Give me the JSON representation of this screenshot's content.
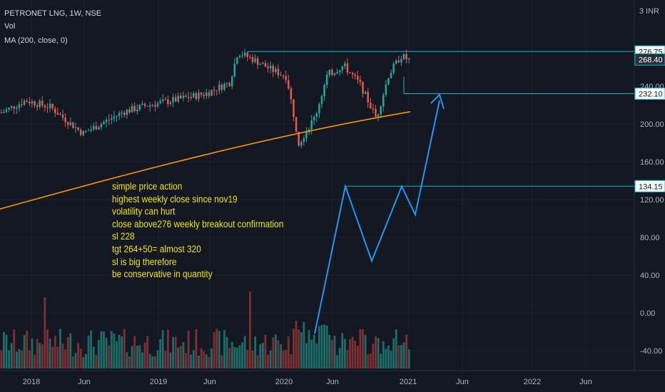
{
  "header": {
    "symbol": "PETRONET LNG, 1W, NSE",
    "indicator_vol": "Vol",
    "indicator_ma": "MA (200, close, 0)",
    "currency": "3 INR"
  },
  "annotation_lines": [
    "simple price action",
    "highest weekly close since nov19",
    "volatility can hurt",
    "close above276 weekly breakout confirmation",
    "sl 228",
    "tgt 264+50= almost 320",
    "sl is big therefore",
    "be conservative in quantity"
  ],
  "chart_data": {
    "type": "candlestick",
    "title": "PETRONET LNG, 1W, NSE",
    "x_tick_labels": [
      "2018",
      "Jun",
      "2019",
      "Jun",
      "2020",
      "Jun",
      "2021",
      "Jun",
      "2022",
      "Jun"
    ],
    "y_tick_labels": [
      "200.00",
      "160.00",
      "120.00",
      "80.00",
      "40.00",
      "0.00",
      "-40.00"
    ],
    "y_range": [
      -65,
      300
    ],
    "price_path": [
      {
        "t": 0,
        "p": 212
      },
      {
        "t": 0.06,
        "p": 225
      },
      {
        "t": 0.12,
        "p": 218
      },
      {
        "t": 0.2,
        "p": 190
      },
      {
        "t": 0.3,
        "p": 213
      },
      {
        "t": 0.36,
        "p": 220
      },
      {
        "t": 0.42,
        "p": 225
      },
      {
        "t": 0.5,
        "p": 232
      },
      {
        "t": 0.56,
        "p": 244
      },
      {
        "t": 0.58,
        "p": 276
      },
      {
        "t": 0.62,
        "p": 268
      },
      {
        "t": 0.66,
        "p": 258
      },
      {
        "t": 0.7,
        "p": 250
      },
      {
        "t": 0.73,
        "p": 180
      },
      {
        "t": 0.77,
        "p": 208
      },
      {
        "t": 0.8,
        "p": 252
      },
      {
        "t": 0.84,
        "p": 262
      },
      {
        "t": 0.88,
        "p": 242
      },
      {
        "t": 0.92,
        "p": 206
      },
      {
        "t": 0.95,
        "p": 252
      },
      {
        "t": 0.98,
        "p": 272
      },
      {
        "t": 1,
        "p": 268
      }
    ],
    "moving_average": {
      "name": "MA (200, close, 0)",
      "color": "#ff9800",
      "points": [
        {
          "x_label": "start",
          "y": 110
        },
        {
          "x_label": "2021",
          "y": 213
        }
      ]
    },
    "horizontal_levels": [
      {
        "value": 276.75,
        "label": "276.75"
      },
      {
        "value": 232.1,
        "label": "232.10"
      },
      {
        "value": 134.15,
        "label": "134.15"
      }
    ],
    "last_price": {
      "value": 268.4,
      "label": "268.40"
    },
    "hidden_tick": "240.00",
    "projected_path": [
      {
        "date_label": "Mar 2020",
        "y": -22
      },
      {
        "date_label": "Jul 2020",
        "y": 134
      },
      {
        "date_label": "Oct 2020",
        "y": 55
      },
      {
        "date_label": "Dec 2020",
        "y": 134
      },
      {
        "date_label": "Jan 2021",
        "y": 104
      },
      {
        "date_label": "Apr 2021",
        "y": 225
      }
    ],
    "colors": {
      "up": "#26a69a",
      "down": "#ef5350",
      "vol_up": "#1d6b66",
      "vol_down": "#7c2e33",
      "level_line": "#00bcd4",
      "projection": "#2196f3",
      "ma": "#ff9800",
      "background": "#131722",
      "label_bg": "#ffffff"
    }
  }
}
